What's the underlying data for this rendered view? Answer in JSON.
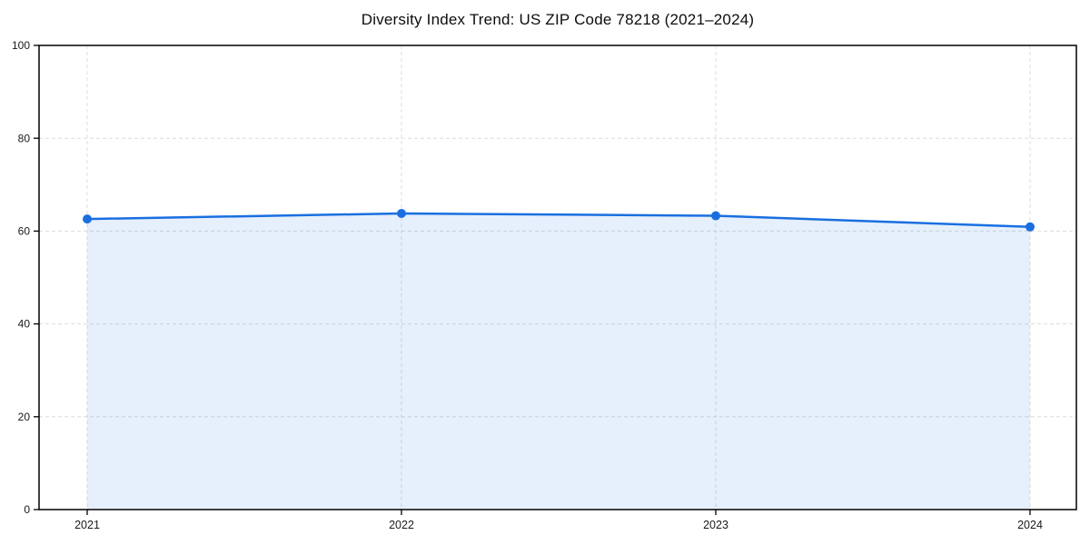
{
  "chart_data": {
    "type": "line",
    "title": "Diversity Index Trend: US ZIP Code 78218 (2021–2024)",
    "categories": [
      "2021",
      "2022",
      "2023",
      "2024"
    ],
    "values": [
      62.6,
      63.8,
      63.3,
      60.9
    ],
    "xlabel": "",
    "ylabel": "",
    "ylim": [
      0,
      100
    ],
    "yticks": [
      0,
      20,
      40,
      60,
      80,
      100
    ],
    "grid": true,
    "grid_style": "dashed",
    "area_fill": true,
    "legend": "none",
    "colors": {
      "line": "#1a6fe0",
      "marker": "#1a6fe0",
      "area": "rgba(26,111,224,0.11)",
      "grid": "#dcdcdc",
      "axis": "#000000",
      "tick_label": "#1a1a1a",
      "background": "#ffffff"
    }
  }
}
